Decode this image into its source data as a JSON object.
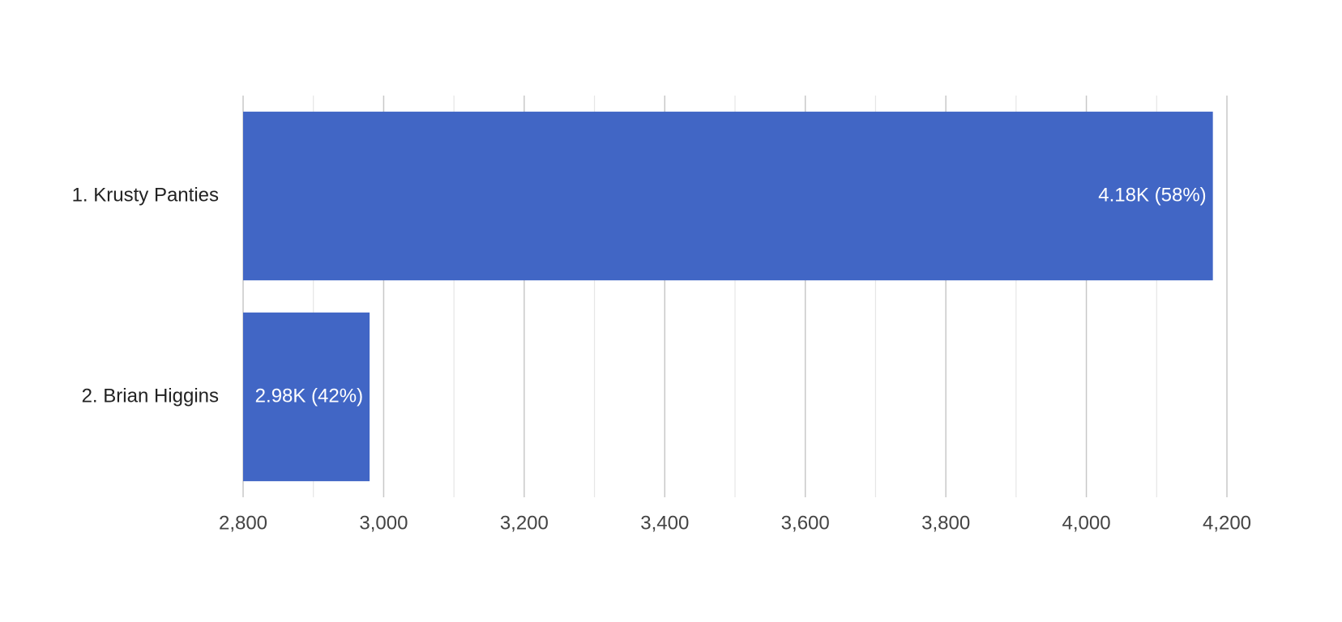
{
  "chart_data": {
    "type": "hbar",
    "categories": [
      "1. Krusty Panties",
      "2. Brian Higgins"
    ],
    "values": [
      4180,
      2980
    ],
    "value_labels": [
      "4.18K (58%)",
      "2.98K (42%)"
    ],
    "color": "#4166c5",
    "xlim": [
      2800,
      4200
    ],
    "xticks": [
      {
        "value": 2800,
        "label": "2,800"
      },
      {
        "value": 3000,
        "label": "3,000"
      },
      {
        "value": 3200,
        "label": "3,200"
      },
      {
        "value": 3400,
        "label": "3,400"
      },
      {
        "value": 3600,
        "label": "3,600"
      },
      {
        "value": 3800,
        "label": "3,800"
      },
      {
        "value": 4000,
        "label": "4,000"
      },
      {
        "value": 4200,
        "label": "4,200"
      }
    ],
    "xminorticks": [
      2900,
      3100,
      3300,
      3500,
      3700,
      3900,
      4100
    ],
    "grid": true
  }
}
